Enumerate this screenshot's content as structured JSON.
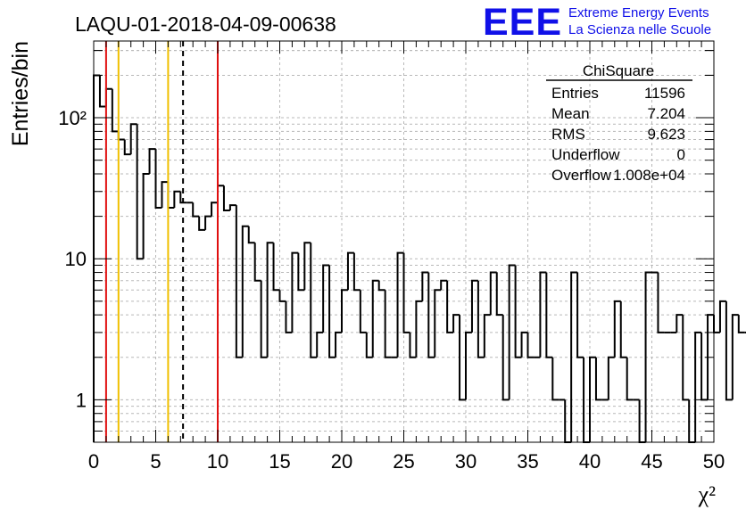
{
  "title": "LAQU-01-2018-04-09-00638",
  "logo": {
    "text": "EEE",
    "line1": "Extreme Energy Events",
    "line2": "La Scienza nelle Scuole",
    "color": "#1010e8"
  },
  "stats": {
    "name": "ChiSquare",
    "rows": [
      {
        "label": "Entries",
        "value": "11596"
      },
      {
        "label": "Mean",
        "value": "7.204"
      },
      {
        "label": "RMS",
        "value": "9.623"
      },
      {
        "label": "Underflow",
        "value": "0"
      },
      {
        "label": "Overflow",
        "value": "1.008e+04"
      }
    ]
  },
  "chart_data": {
    "type": "histogram",
    "title": "LAQU-01-2018-04-09-00638",
    "xlabel": "χ²",
    "ylabel": "Entries/bin",
    "yscale": "log",
    "xlim": [
      0,
      50
    ],
    "ylim": [
      0.5,
      350
    ],
    "grid": true,
    "bin_width": 0.5,
    "x_ticks": [
      "0",
      "5",
      "10",
      "15",
      "20",
      "25",
      "30",
      "35",
      "40",
      "45",
      "50"
    ],
    "y_ticks": [
      "1",
      "10",
      "10²"
    ],
    "counts": [
      200,
      120,
      160,
      80,
      70,
      55,
      90,
      10,
      40,
      60,
      23,
      35,
      23,
      30,
      25,
      25,
      20,
      16,
      20,
      25,
      33,
      22,
      24,
      2,
      17,
      13,
      7,
      2,
      13,
      6,
      5,
      3,
      11,
      6,
      13,
      2,
      3,
      9,
      2,
      3,
      6,
      11,
      6,
      3,
      2,
      7,
      6,
      2,
      2,
      11,
      3,
      2,
      5,
      8,
      2,
      6,
      7,
      3,
      4,
      1,
      3,
      7,
      2,
      4,
      8,
      4,
      1,
      9,
      2,
      3,
      2,
      2,
      8,
      2,
      1,
      1,
      0.4,
      8,
      2,
      0.4,
      2,
      1,
      1,
      2,
      5,
      2,
      1,
      1,
      0.4,
      8,
      8,
      3,
      3,
      3,
      4,
      1,
      0.4,
      3,
      1,
      4,
      3,
      5,
      1,
      4,
      3,
      3,
      2,
      3,
      3,
      4,
      1,
      3,
      6,
      0.4,
      4,
      3,
      1,
      1,
      0.4,
      0.4,
      0.4,
      1,
      2,
      0.4,
      4,
      3,
      4,
      2,
      2,
      2,
      2,
      0.4,
      1,
      0.4,
      2,
      0.4
    ],
    "vertical_lines": [
      {
        "x": 1,
        "color": "#e01010",
        "style": "solid"
      },
      {
        "x": 2,
        "color": "#f0c000",
        "style": "solid"
      },
      {
        "x": 6,
        "color": "#f0c000",
        "style": "solid"
      },
      {
        "x": 7.204,
        "color": "#000000",
        "style": "dashed"
      },
      {
        "x": 10,
        "color": "#e01010",
        "style": "solid"
      }
    ]
  }
}
